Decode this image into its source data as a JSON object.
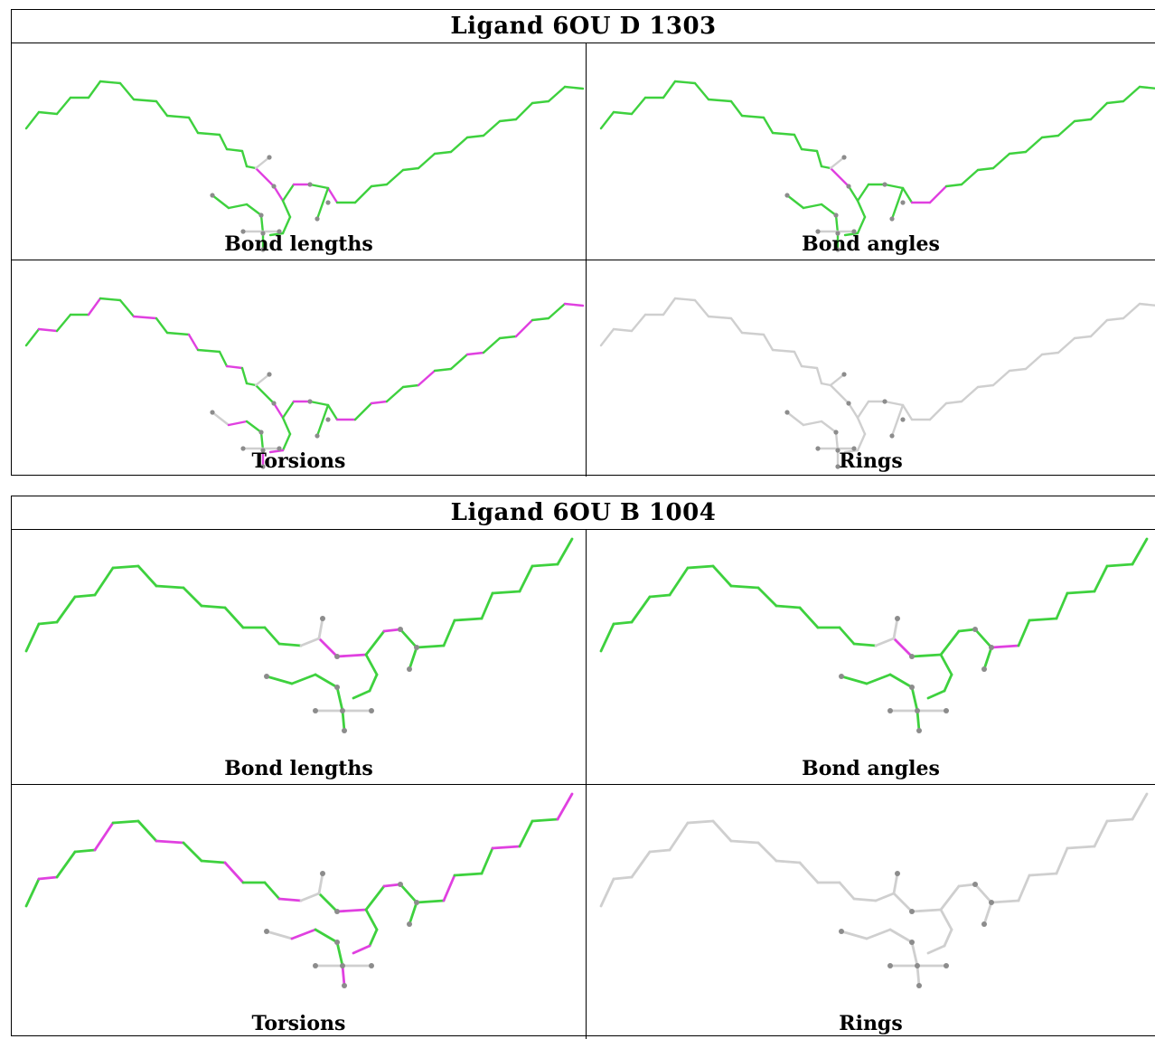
{
  "colors": {
    "ok": "#3ed13e",
    "outlier": "#e040e0",
    "none": "#cfcfcf",
    "atom": "#8c8c8c"
  },
  "tables": [
    {
      "title": "Ligand 6OU D 1303",
      "panels": [
        {
          "caption": "Bond lengths",
          "molecule": "6ou-d-1303",
          "coloring": "bond-lengths"
        },
        {
          "caption": "Bond angles",
          "molecule": "6ou-d-1303",
          "coloring": "bond-angles"
        },
        {
          "caption": "Torsions",
          "molecule": "6ou-d-1303",
          "coloring": "torsions"
        },
        {
          "caption": "Rings",
          "molecule": "6ou-d-1303",
          "coloring": "rings"
        }
      ]
    },
    {
      "title": "Ligand 6OU B 1004",
      "panels": [
        {
          "caption": "Bond lengths",
          "molecule": "6ou-b-1004",
          "coloring": "bond-lengths"
        },
        {
          "caption": "Bond angles",
          "molecule": "6ou-b-1004",
          "coloring": "bond-angles"
        },
        {
          "caption": "Torsions",
          "molecule": "6ou-b-1004",
          "coloring": "torsions"
        },
        {
          "caption": "Rings",
          "molecule": "6ou-b-1004",
          "coloring": "rings"
        }
      ]
    }
  ]
}
